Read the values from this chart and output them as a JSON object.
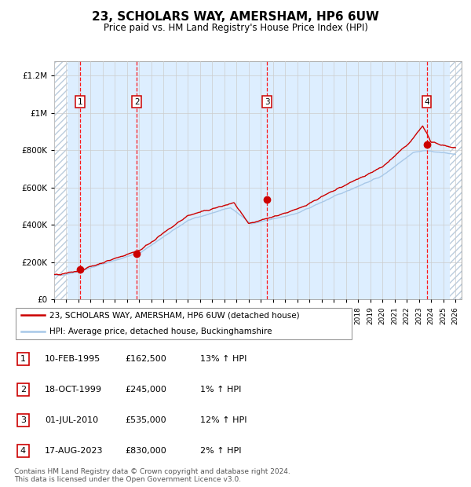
{
  "title": "23, SCHOLARS WAY, AMERSHAM, HP6 6UW",
  "subtitle": "Price paid vs. HM Land Registry's House Price Index (HPI)",
  "title_fontsize": 11,
  "subtitle_fontsize": 8.5,
  "ylabel_ticks": [
    "£0",
    "£200K",
    "£400K",
    "£600K",
    "£800K",
    "£1M",
    "£1.2M"
  ],
  "ytick_values": [
    0,
    200000,
    400000,
    600000,
    800000,
    1000000,
    1200000
  ],
  "ylim": [
    0,
    1280000
  ],
  "xlim_start": 1993.0,
  "xlim_end": 2026.5,
  "hpi_color": "#a8c8e8",
  "price_color": "#cc0000",
  "grid_color": "#cccccc",
  "bg_color": "#ddeeff",
  "sale_dates_year": [
    1995.11,
    1999.8,
    2010.5,
    2023.63
  ],
  "sale_prices": [
    162500,
    245000,
    535000,
    830000
  ],
  "sale_labels": [
    "1",
    "2",
    "3",
    "4"
  ],
  "legend_line1": "23, SCHOLARS WAY, AMERSHAM, HP6 6UW (detached house)",
  "legend_line2": "HPI: Average price, detached house, Buckinghamshire",
  "table_rows": [
    [
      "1",
      "10-FEB-1995",
      "£162,500",
      "13% ↑ HPI"
    ],
    [
      "2",
      "18-OCT-1999",
      "£245,000",
      "1% ↑ HPI"
    ],
    [
      "3",
      "01-JUL-2010",
      "£535,000",
      "12% ↑ HPI"
    ],
    [
      "4",
      "17-AUG-2023",
      "£830,000",
      "2% ↑ HPI"
    ]
  ],
  "footnote": "Contains HM Land Registry data © Crown copyright and database right 2024.\nThis data is licensed under the Open Government Licence v3.0.",
  "footnote_fontsize": 6.5
}
